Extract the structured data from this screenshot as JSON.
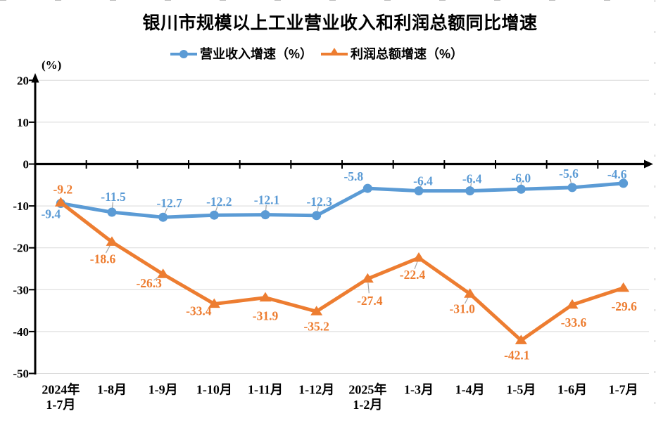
{
  "page": {
    "title": "银川市规模以上工业营业收入和利润总额同比增速",
    "axis_unit": "(%)"
  },
  "chart_data": {
    "type": "line",
    "title": "银川市规模以上工业营业收入和利润总额同比增速",
    "ylabel": "(%)",
    "xlabel": "",
    "ylim": [
      -50,
      20
    ],
    "yticks": [
      20,
      10,
      0,
      -10,
      -20,
      -30,
      -40,
      -50
    ],
    "grid": true,
    "legend_position": "top",
    "categories": [
      [
        "2024年",
        "1-7月"
      ],
      [
        "1-8月"
      ],
      [
        "1-9月"
      ],
      [
        "1-10月"
      ],
      [
        "1-11月"
      ],
      [
        "1-12月"
      ],
      [
        "2025年",
        "1-2月"
      ],
      [
        "1-3月"
      ],
      [
        "1-4月"
      ],
      [
        "1-5月"
      ],
      [
        "1-6月"
      ],
      [
        "1-7月"
      ]
    ],
    "series": [
      {
        "name": "营业收入增速（%）",
        "color": "#5B9BD5",
        "marker": "circle",
        "values": [
          -9.4,
          -11.5,
          -12.7,
          -12.2,
          -12.1,
          -12.3,
          -5.8,
          -6.4,
          -6.4,
          -6.0,
          -5.6,
          -4.6
        ],
        "labels": [
          "-9.4",
          "-11.5",
          "-12.7",
          "-12.2",
          "-12.1",
          "-12.3",
          "-5.8",
          "-6.4",
          "-6.4",
          "-6.0",
          "-5.6",
          "-4.6"
        ]
      },
      {
        "name": "利润总额增速（%）",
        "color": "#ED7D31",
        "marker": "triangle",
        "values": [
          -9.2,
          -18.6,
          -26.3,
          -33.4,
          -31.9,
          -35.2,
          -27.4,
          -22.4,
          -31.0,
          -42.1,
          -33.6,
          -29.6
        ],
        "labels": [
          "-9.2",
          "-18.6",
          "-26.3",
          "-33.4",
          "-31.9",
          "-35.2",
          "-27.4",
          "-22.4",
          "-31.0",
          "-42.1",
          "-33.6",
          "-29.6"
        ]
      }
    ]
  },
  "colors": {
    "revenue_series": "#5B9BD5",
    "profit_series": "#ED7D31",
    "gridline": "#D9D9D9",
    "axis": "#000000",
    "leader_line": "#A6A6A6"
  }
}
